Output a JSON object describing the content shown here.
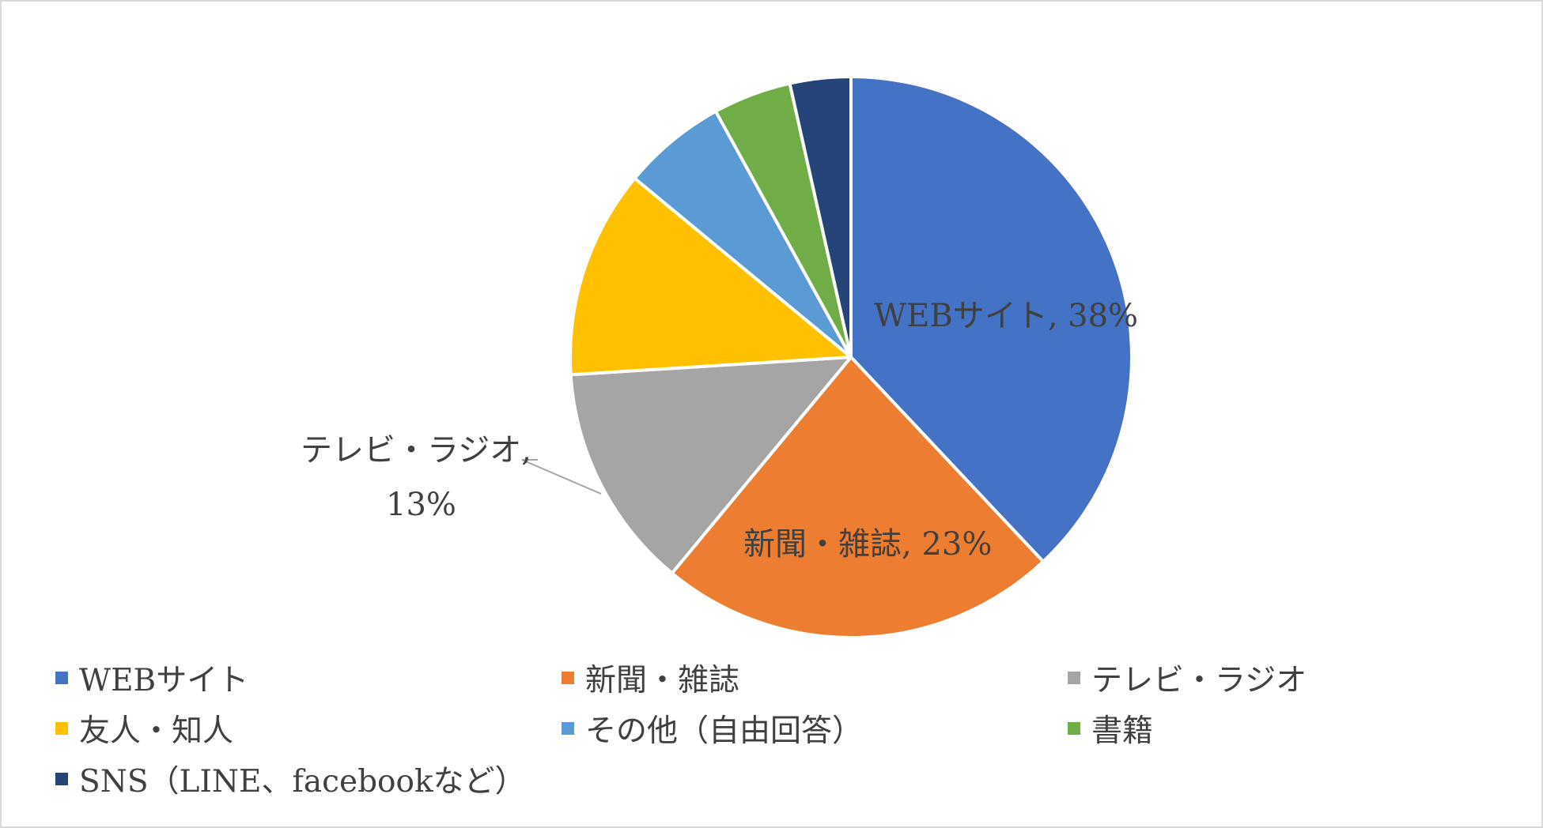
{
  "chart_data": {
    "type": "pie",
    "title": "",
    "slices": [
      {
        "name": "WEBサイト",
        "value": 38,
        "color": "#4472C4",
        "label": "WEBサイト, 38%"
      },
      {
        "name": "新聞・雑誌",
        "value": 23,
        "color": "#ED7D31",
        "label": "新聞・雑誌, 23%"
      },
      {
        "name": "テレビ・ラジオ",
        "value": 13,
        "color": "#A5A5A5",
        "label_line1": "テレビ・ラジオ,",
        "label_line2": "13%"
      },
      {
        "name": "友人・知人",
        "value": 12,
        "color": "#FFC000"
      },
      {
        "name": "その他（自由回答）",
        "value": 6,
        "color": "#5B9BD5"
      },
      {
        "name": "書籍",
        "value": 4.5,
        "color": "#70AD47"
      },
      {
        "name": "SNS（LINE、facebookなど）",
        "value": 3.5,
        "color": "#264478"
      }
    ],
    "legend_position": "bottom"
  }
}
